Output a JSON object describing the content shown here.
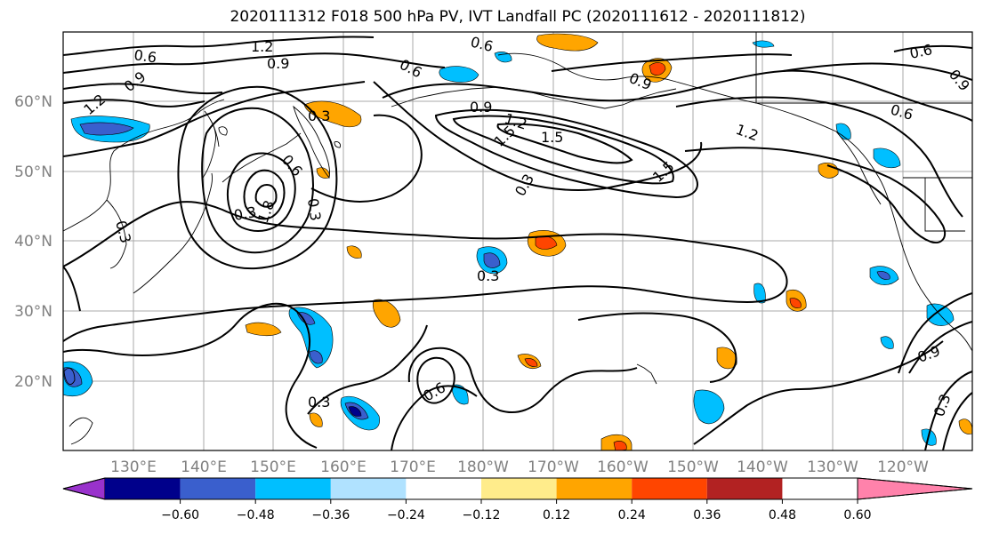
{
  "title": "2020111312 F018 500 hPa PV, IVT Landfall PC (2020111612 - 2020111812)",
  "lat_labels": [
    "60°N",
    "50°N",
    "40°N",
    "30°N",
    "20°N"
  ],
  "lon_labels": [
    "130°E",
    "140°E",
    "150°E",
    "160°E",
    "170°E",
    "180°W",
    "170°W",
    "160°W",
    "150°W",
    "140°W",
    "130°W",
    "120°W"
  ],
  "contour_labels": [
    "0.6",
    "1.2",
    "0.9",
    "0.6",
    "0.6",
    "0.9",
    "1.2",
    "0.3",
    "0.9",
    "1.2",
    "1.5",
    "1.5",
    "1.2",
    "0.6",
    "0.6",
    "0.9",
    "1.5",
    "0.3",
    "0.9",
    "0.3",
    "0.6",
    "0.3",
    "0.3",
    "1.8",
    "0.3",
    "0.6",
    "0.3",
    "0.9",
    "0.3"
  ],
  "colorbar": {
    "ticks": [
      "−0.60",
      "−0.48",
      "−0.36",
      "−0.24",
      "−0.12",
      "0.12",
      "0.24",
      "0.36",
      "0.48",
      "0.60"
    ],
    "colors": [
      "#9932cc",
      "#00008b",
      "#3a5fcd",
      "#00bfff",
      "#b0e2ff",
      "#ffffff",
      "#ffec8b",
      "#ffa500",
      "#ff4500",
      "#b22222",
      "#ff82ab"
    ]
  }
}
